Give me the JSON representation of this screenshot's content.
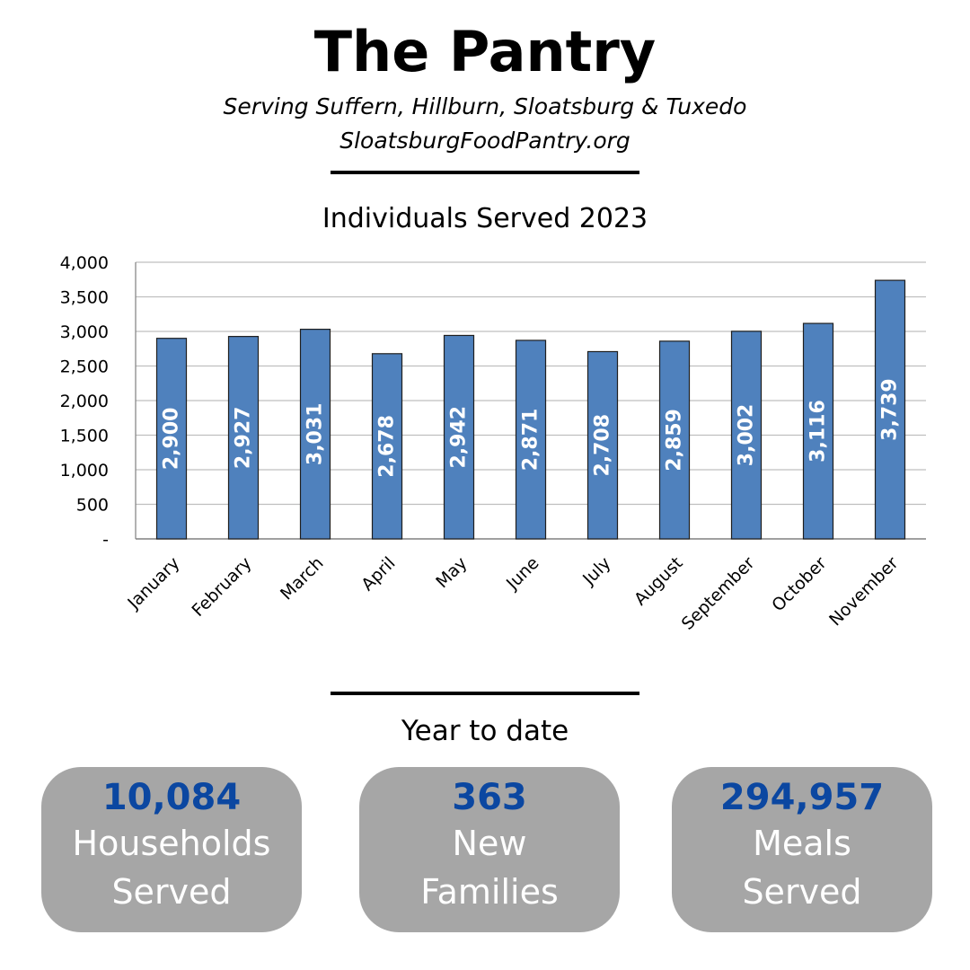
{
  "header": {
    "title": "The Pantry",
    "subtitle": "Serving Suffern, Hillburn, Sloatsburg & Tuxedo",
    "website": "SloatsburgFoodPantry.org"
  },
  "chart_data": {
    "type": "bar",
    "title": "Individuals Served 2023",
    "xlabel": "",
    "ylabel": "",
    "categories": [
      "January",
      "February",
      "March",
      "April",
      "May",
      "June",
      "July",
      "August",
      "September",
      "October",
      "November"
    ],
    "values": [
      2900,
      2927,
      3031,
      2678,
      2942,
      2871,
      2708,
      2859,
      3002,
      3116,
      3739
    ],
    "data_labels": [
      "2,900",
      "2,927",
      "3,031",
      "2,678",
      "2,942",
      "2,871",
      "2,708",
      "2,859",
      "3,002",
      "3,116",
      "3,739"
    ],
    "ylim": [
      0,
      4000
    ],
    "yticks": [
      0,
      500,
      1000,
      1500,
      2000,
      2500,
      3000,
      3500,
      4000
    ],
    "ytick_labels": [
      "-",
      "500",
      "1,000",
      "1,500",
      "2,000",
      "2,500",
      "3,000",
      "3,500",
      "4,000"
    ],
    "grid": true,
    "legend": "none",
    "colors": {
      "bar": "#4f81bd",
      "bar_border": "#1f1f1f",
      "grid": "#bfbfbf",
      "data_label": "#ffffff"
    }
  },
  "ytd": {
    "title": "Year to date",
    "cards": [
      {
        "value": "10,084",
        "line1": "Households",
        "line2": "Served"
      },
      {
        "value": "363",
        "line1": "New",
        "line2": "Families"
      },
      {
        "value": "294,957",
        "line1": "Meals",
        "line2": "Served"
      }
    ],
    "colors": {
      "card_bg": "#a6a6a6",
      "value": "#0b47a1",
      "label": "#ffffff"
    }
  }
}
